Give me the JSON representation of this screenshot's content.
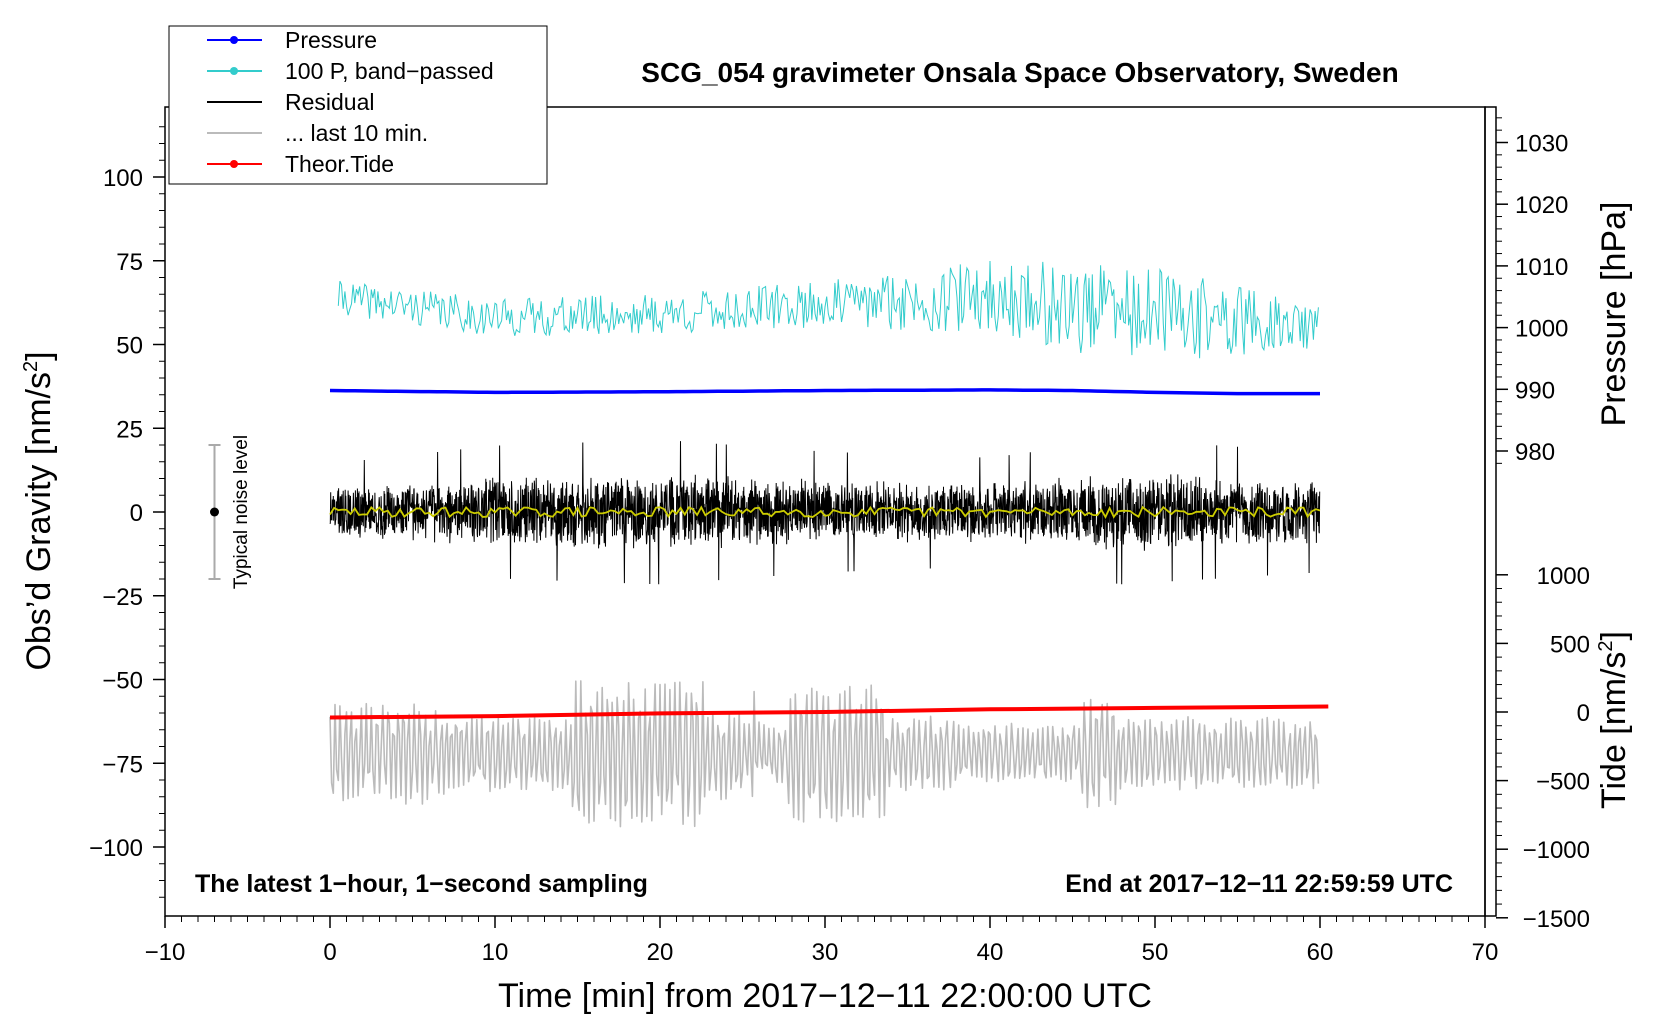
{
  "chart_data": {
    "type": "line",
    "title": "SCG_054 gravimeter Onsala Space Observatory, Sweden",
    "xlabel": "Time [min] from 2017−12−11 22:00:00 UTC",
    "ylabel_left": "Obs’d Gravity [nm/s²]",
    "ylabel_right_top": "Pressure [hPa]",
    "ylabel_right_bottom": "Tide [nm/s²]",
    "xlim": [
      -10,
      70
    ],
    "ylim_left": [
      -120,
      120
    ],
    "pressure_axis_range": [
      978,
      1034
    ],
    "tide_axis_range": [
      -1500,
      1000
    ],
    "x_ticks": [
      "−10",
      "0",
      "10",
      "20",
      "30",
      "40",
      "50",
      "60",
      "70"
    ],
    "y_ticks_left": [
      "100",
      "75",
      "50",
      "25",
      "0",
      "−25",
      "−50",
      "−75",
      "−100"
    ],
    "y_ticks_pressure": [
      "980",
      "990",
      "1000",
      "1010",
      "1020",
      "1030"
    ],
    "y_ticks_tide": [
      "1000",
      "500",
      "0",
      "−500",
      "−1000",
      "−1500"
    ],
    "annotation_left": "The latest 1−hour, 1−second sampling",
    "annotation_right": "End at 2017−12−11 22:59:59 UTC",
    "noise_label": "Typical noise level",
    "noise_bar": {
      "x": -7,
      "center": 0,
      "half_range": 20
    },
    "legend": [
      {
        "label": "Pressure",
        "color": "#0000ff",
        "marker": true
      },
      {
        "label": "100 P, band−passed",
        "color": "#33cccc",
        "marker": true
      },
      {
        "label": "Residual",
        "color": "#000000",
        "marker": false
      },
      {
        "label": "... last 10 min.",
        "color": "#bbbbbb",
        "marker": false
      },
      {
        "label": "Theor.Tide",
        "color": "#ff0000",
        "marker": true
      }
    ],
    "series": [
      {
        "name": "Pressure",
        "axis": "pressure",
        "color": "#0000ff",
        "x_range": [
          0,
          60
        ],
        "x": [
          0,
          10,
          20,
          30,
          40,
          45,
          50,
          55,
          60
        ],
        "values": [
          989.8,
          989.5,
          989.6,
          989.8,
          989.9,
          989.8,
          989.5,
          989.3,
          989.3
        ]
      },
      {
        "name": "100 P, band−passed",
        "axis": "left",
        "color": "#33cccc",
        "x_range": [
          0.5,
          60
        ],
        "baseline": [
          [
            0.5,
            64
          ],
          [
            10,
            58
          ],
          [
            20,
            59
          ],
          [
            30,
            62
          ],
          [
            40,
            64
          ],
          [
            47,
            60
          ],
          [
            55,
            57
          ],
          [
            60,
            55
          ]
        ],
        "amplitude": [
          [
            0.5,
            5
          ],
          [
            15,
            6
          ],
          [
            30,
            7
          ],
          [
            40,
            11
          ],
          [
            48,
            15
          ],
          [
            55,
            11
          ],
          [
            60,
            6
          ]
        ],
        "extremes": {
          "max": 86,
          "min": 37
        }
      },
      {
        "name": "Residual",
        "axis": "left",
        "color": "#000000",
        "x_range": [
          0,
          60
        ],
        "envelope": [
          [
            0,
            8
          ],
          [
            10,
            11
          ],
          [
            20,
            12
          ],
          [
            30,
            10
          ],
          [
            40,
            9
          ],
          [
            48,
            12
          ],
          [
            60,
            10
          ]
        ],
        "extremes": {
          "max": 24,
          "min": -23
        }
      },
      {
        "name": "Residual (smoothed)",
        "axis": "left",
        "color": "#cccc00",
        "x_range": [
          0,
          60
        ],
        "level": 0
      },
      {
        "name": "... last 10 min.",
        "axis": "left",
        "color": "#bbbbbb",
        "x_range": [
          0,
          60
        ],
        "center": -72,
        "amplitude_range": [
          8,
          21
        ],
        "extremes": {
          "max": -51,
          "min": -95
        }
      },
      {
        "name": "Theor.Tide",
        "axis": "tide",
        "color": "#ff0000",
        "x": [
          0,
          10,
          20,
          30,
          40,
          50,
          60.5
        ],
        "values": [
          -40,
          -30,
          -10,
          0,
          20,
          30,
          40
        ]
      }
    ]
  }
}
